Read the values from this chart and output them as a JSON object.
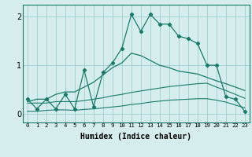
{
  "xlabel": "Humidex (Indice chaleur)",
  "x_values": [
    0,
    1,
    2,
    3,
    4,
    5,
    6,
    7,
    8,
    9,
    10,
    11,
    12,
    13,
    14,
    15,
    16,
    17,
    18,
    19,
    20,
    21,
    22,
    23
  ],
  "line_jagged": [
    0.3,
    0.1,
    0.3,
    0.1,
    0.4,
    0.1,
    0.9,
    0.15,
    0.85,
    1.05,
    1.35,
    2.05,
    1.7,
    2.05,
    1.85,
    1.85,
    1.6,
    1.55,
    1.45,
    1.0,
    1.0,
    0.35,
    0.3,
    0.05
  ],
  "line_smooth": [
    0.25,
    0.3,
    0.3,
    0.4,
    0.45,
    0.45,
    0.55,
    0.65,
    0.8,
    0.95,
    1.05,
    1.25,
    1.2,
    1.1,
    1.0,
    0.95,
    0.88,
    0.85,
    0.82,
    0.75,
    0.68,
    0.62,
    0.55,
    0.48
  ],
  "line_mid": [
    0.22,
    0.22,
    0.22,
    0.25,
    0.25,
    0.25,
    0.27,
    0.3,
    0.33,
    0.37,
    0.4,
    0.44,
    0.47,
    0.5,
    0.53,
    0.56,
    0.58,
    0.6,
    0.62,
    0.63,
    0.55,
    0.48,
    0.4,
    0.32
  ],
  "line_bot": [
    0.05,
    0.05,
    0.07,
    0.08,
    0.08,
    0.07,
    0.09,
    0.1,
    0.12,
    0.14,
    0.16,
    0.19,
    0.21,
    0.24,
    0.26,
    0.28,
    0.29,
    0.3,
    0.31,
    0.31,
    0.28,
    0.24,
    0.18,
    0.12
  ],
  "color_main": "#1a7a6a",
  "bg_color": "#d5eeed",
  "grid_color": "#9ecece",
  "ylim": [
    -0.18,
    2.25
  ],
  "yticks": [
    0,
    1,
    2
  ],
  "xtick_labels": [
    "0",
    "1",
    "2",
    "3",
    "4",
    "5",
    "6",
    "7",
    "8",
    "9",
    "10",
    "11",
    "12",
    "13",
    "14",
    "15",
    "16",
    "17",
    "18",
    "19",
    "20",
    "21",
    "22",
    "23"
  ]
}
